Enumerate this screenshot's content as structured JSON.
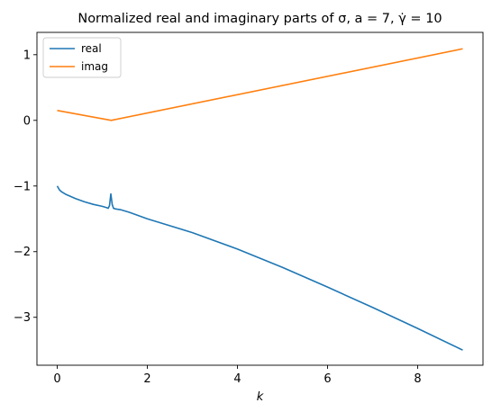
{
  "chart_data": {
    "type": "line",
    "title": "Normalized real and imaginary parts of σ, a = 7, γ̇ = 10",
    "xlabel": "k",
    "ylabel": "",
    "xlim": [
      -0.45,
      9.45
    ],
    "ylim": [
      -3.73,
      1.34
    ],
    "xticks": [
      0,
      2,
      4,
      6,
      8
    ],
    "yticks": [
      1,
      0,
      -1,
      -2,
      -3
    ],
    "grid": false,
    "legend_position": "top-left",
    "series": [
      {
        "name": "real",
        "color": "#1f77b4",
        "x": [
          0,
          0.05,
          0.1,
          0.2,
          0.4,
          0.6,
          0.8,
          1.0,
          1.1,
          1.13,
          1.16,
          1.19,
          1.22,
          1.25,
          1.3,
          1.4,
          1.6,
          2.0,
          3.0,
          4.0,
          5.0,
          6.0,
          7.0,
          8.0,
          9.0
        ],
        "y": [
          -1.0,
          -1.06,
          -1.09,
          -1.13,
          -1.19,
          -1.24,
          -1.28,
          -1.31,
          -1.33,
          -1.34,
          -1.3,
          -1.12,
          -1.28,
          -1.34,
          -1.35,
          -1.36,
          -1.4,
          -1.5,
          -1.71,
          -1.96,
          -2.24,
          -2.54,
          -2.85,
          -3.17,
          -3.5
        ]
      },
      {
        "name": "imag",
        "color": "#ff7f0e",
        "x": [
          0,
          1.2,
          9.0
        ],
        "y": [
          0.15,
          0.0,
          1.09
        ]
      }
    ]
  }
}
